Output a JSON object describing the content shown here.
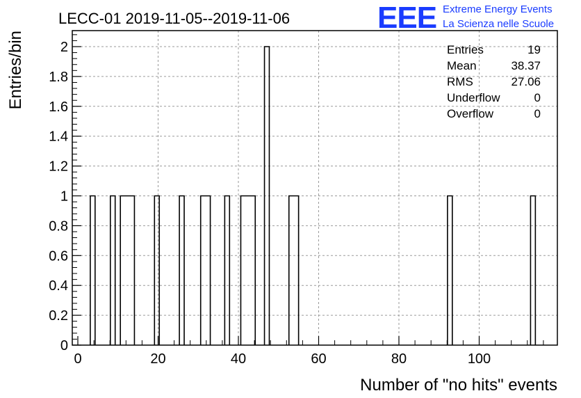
{
  "header": {
    "title": "LECC-01 2019-11-05--2019-11-06",
    "logo_letters": "EEE",
    "logo_line1": "Extreme Energy Events",
    "logo_line2": "La Scienza nelle Scuole",
    "logo_color": "#1a3cff"
  },
  "stats": {
    "entries_label": "Entries",
    "entries_value": "19",
    "mean_label": "Mean",
    "mean_value": "38.37",
    "rms_label": "RMS",
    "rms_value": "27.06",
    "underflow_label": "Underflow",
    "underflow_value": "0",
    "overflow_label": "Overflow",
    "overflow_value": "0"
  },
  "chart_data": {
    "type": "bar",
    "histogram": true,
    "title": "LECC-01 2019-11-05--2019-11-06",
    "xlabel": "Number of \"no hits\" events",
    "ylabel": "Entries/bin",
    "xlim": [
      -0.5,
      118.5
    ],
    "ylim": [
      0,
      2.1
    ],
    "grid": true,
    "bin_width": 1.2,
    "bars": [
      {
        "x0": 3.1,
        "x1": 4.3,
        "value": 1
      },
      {
        "x0": 8.1,
        "x1": 9.3,
        "value": 1
      },
      {
        "x0": 10.6,
        "x1": 14.1,
        "value": 1
      },
      {
        "x0": 19.1,
        "x1": 20.3,
        "value": 1
      },
      {
        "x0": 25.3,
        "x1": 26.5,
        "value": 1
      },
      {
        "x0": 30.6,
        "x1": 33.0,
        "value": 1
      },
      {
        "x0": 36.6,
        "x1": 37.8,
        "value": 1
      },
      {
        "x0": 40.6,
        "x1": 44.2,
        "value": 1
      },
      {
        "x0": 46.5,
        "x1": 47.7,
        "value": 2
      },
      {
        "x0": 52.6,
        "x1": 55.0,
        "value": 1
      },
      {
        "x0": 92.1,
        "x1": 93.3,
        "value": 1
      },
      {
        "x0": 112.8,
        "x1": 114.0,
        "value": 1
      }
    ],
    "x_ticks": [
      0,
      20,
      40,
      60,
      80,
      100
    ],
    "y_ticks": [
      0,
      0.2,
      0.4,
      0.6,
      0.8,
      1,
      1.2,
      1.4,
      1.6,
      1.8,
      2
    ],
    "y_tick_labels": [
      "0",
      "0.2",
      "0.4",
      "0.6",
      "0.8",
      "1",
      "1.2",
      "1.4",
      "1.6",
      "1.8",
      "2"
    ],
    "line_color": "#000000",
    "grid_color": "#9a9a9a"
  }
}
